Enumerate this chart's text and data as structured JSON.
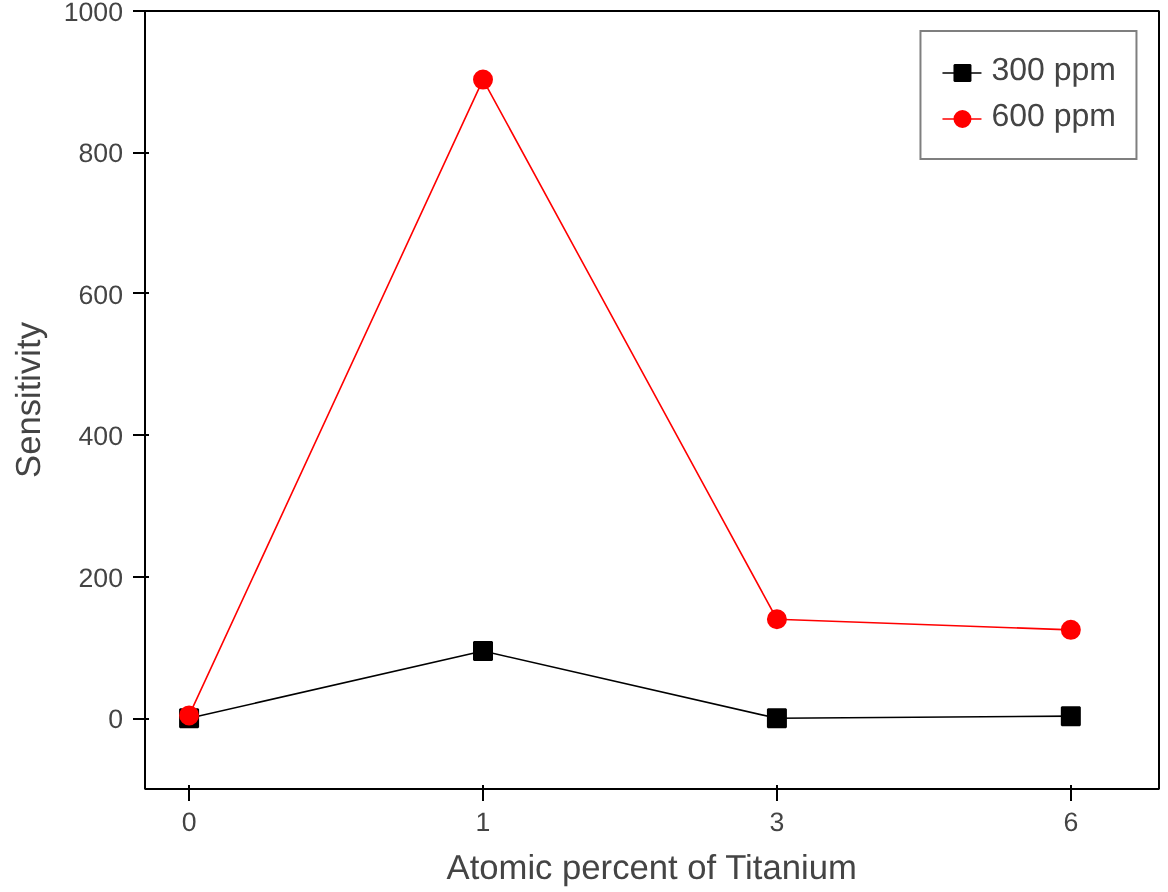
{
  "chart_data": {
    "type": "line",
    "xlabel": "Atomic percent of Titanium",
    "ylabel": "Sensitivity",
    "categories": [
      "0",
      "1",
      "3",
      "6"
    ],
    "series": [
      {
        "name": "300 ppm",
        "color": "#000000",
        "values": [
          0,
          95,
          0,
          3
        ],
        "marker": "square"
      },
      {
        "name": "600 ppm",
        "color": "#ff0000",
        "values": [
          4,
          903,
          140,
          125
        ],
        "marker": "circle"
      }
    ],
    "ylim": [
      -100,
      1000
    ],
    "yticks": [
      0,
      200,
      400,
      600,
      800,
      1000
    ],
    "grid": false,
    "legend": "top right"
  }
}
